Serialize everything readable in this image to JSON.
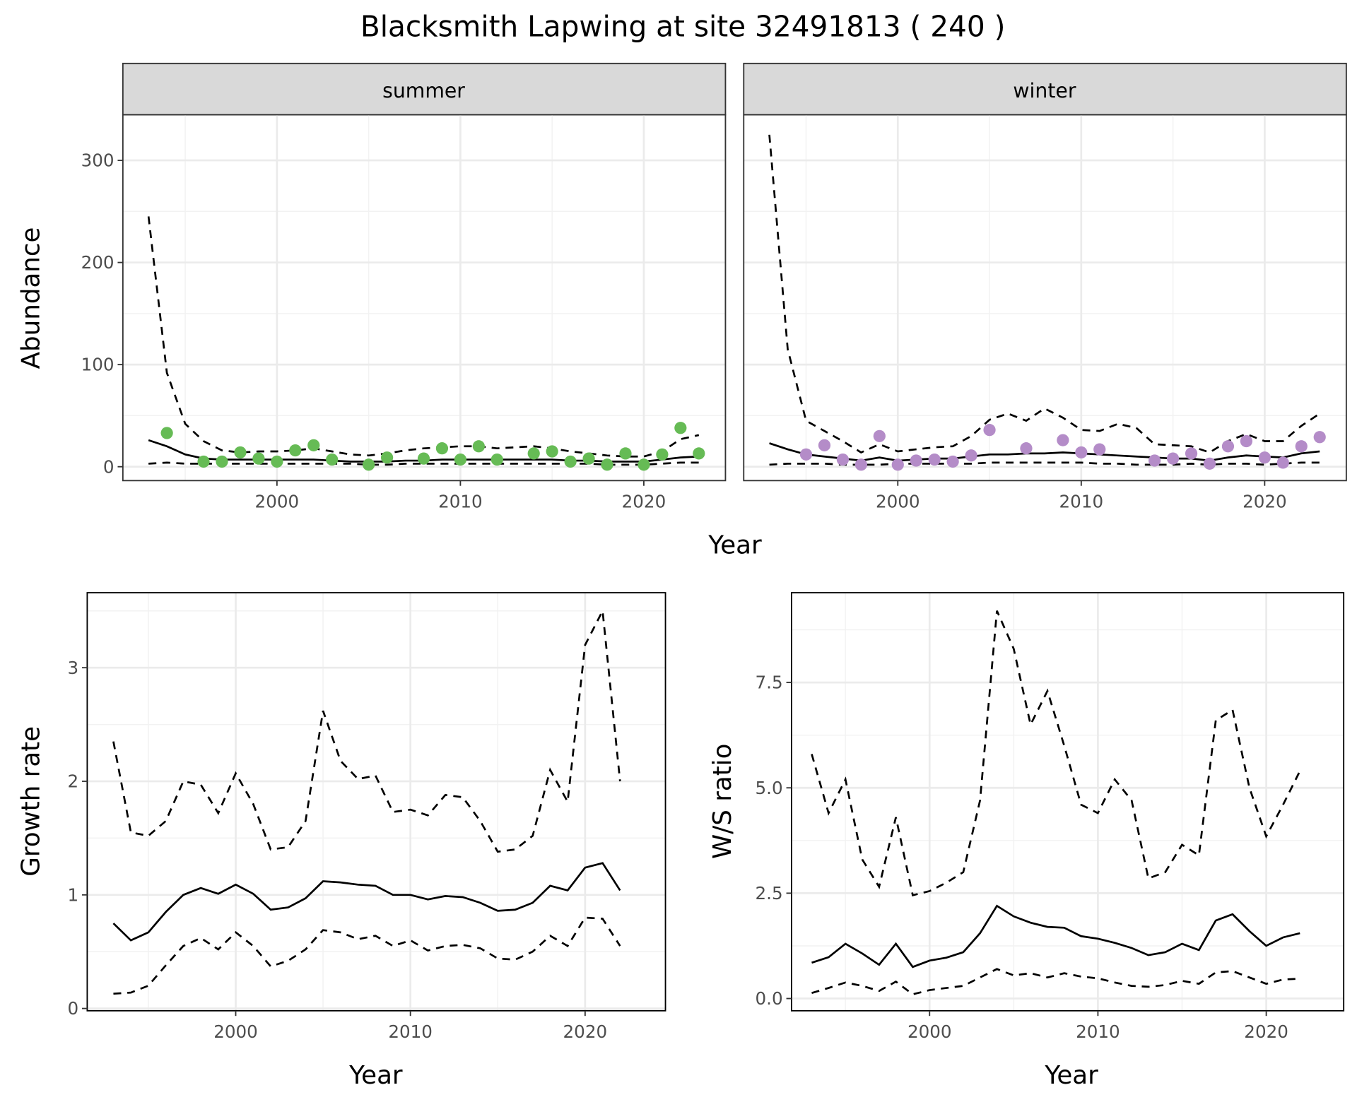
{
  "title": "Blacksmith Lapwing at site 32491813 ( 240 )",
  "colors": {
    "summer": "#66bb55",
    "winter": "#b48cc8",
    "line": "#000000"
  },
  "chart_data": [
    {
      "type": "line+scatter",
      "facet": "summer",
      "xlabel": "Year",
      "ylabel": "Abundance",
      "xlim": [
        1991.6,
        2024.45
      ],
      "ylim": [
        -13.6,
        344.7
      ],
      "xticks": [
        2000,
        2010,
        2020
      ],
      "yticks": [
        0,
        100,
        200,
        300
      ],
      "points": {
        "x": [
          1994,
          1996,
          1997,
          1998,
          1999,
          2000,
          2001,
          2002,
          2003,
          2005,
          2006,
          2008,
          2009,
          2010,
          2011,
          2012,
          2014,
          2015,
          2016,
          2017,
          2018,
          2019,
          2020,
          2021,
          2022,
          2023
        ],
        "y": [
          33,
          5,
          5,
          14,
          8,
          5,
          16,
          21,
          7,
          2,
          9,
          8,
          18,
          7,
          20,
          7,
          13,
          15,
          5,
          8,
          2,
          13,
          2,
          12,
          38,
          13
        ]
      },
      "years": [
        1993,
        1994,
        1995,
        1996,
        1997,
        1998,
        1999,
        2000,
        2001,
        2002,
        2003,
        2004,
        2005,
        2006,
        2007,
        2008,
        2009,
        2010,
        2011,
        2012,
        2013,
        2014,
        2015,
        2016,
        2017,
        2018,
        2019,
        2020,
        2021,
        2022,
        2023
      ],
      "mean": [
        26,
        20,
        12,
        8,
        7,
        7,
        7,
        7,
        7,
        7,
        6,
        5,
        5,
        5,
        6,
        6,
        7,
        7,
        7,
        7,
        7,
        7,
        7,
        6,
        6,
        5,
        5,
        5,
        7,
        9,
        10
      ],
      "upper": [
        245,
        92,
        42,
        25,
        16,
        14,
        15,
        15,
        16,
        18,
        15,
        12,
        11,
        13,
        16,
        18,
        19,
        20,
        20,
        18,
        19,
        20,
        18,
        15,
        13,
        11,
        10,
        10,
        15,
        27,
        31
      ],
      "lower": [
        3,
        4,
        3,
        3,
        3,
        3,
        3,
        3,
        3,
        3,
        3,
        3,
        2,
        2,
        3,
        3,
        3,
        3,
        3,
        3,
        3,
        3,
        3,
        3,
        3,
        2,
        2,
        2,
        3,
        4,
        4
      ]
    },
    {
      "type": "line+scatter",
      "facet": "winter",
      "xlabel": "Year",
      "ylabel": "Abundance",
      "xlim": [
        1991.6,
        2024.45
      ],
      "ylim": [
        -13.6,
        344.7
      ],
      "xticks": [
        2000,
        2010,
        2020
      ],
      "yticks": [
        0,
        100,
        200,
        300
      ],
      "points": {
        "x": [
          1995,
          1996,
          1997,
          1998,
          1999,
          2000,
          2001,
          2002,
          2003,
          2004,
          2005,
          2007,
          2009,
          2010,
          2011,
          2014,
          2015,
          2016,
          2017,
          2018,
          2019,
          2020,
          2021,
          2022,
          2023
        ],
        "y": [
          12,
          21,
          7,
          2,
          30,
          2,
          6,
          7,
          5,
          11,
          36,
          18,
          26,
          14,
          17,
          6,
          8,
          13,
          3,
          20,
          25,
          9,
          4,
          20,
          29
        ]
      },
      "years": [
        1993,
        1994,
        1995,
        1996,
        1997,
        1998,
        1999,
        2000,
        2001,
        2002,
        2003,
        2004,
        2005,
        2006,
        2007,
        2008,
        2009,
        2010,
        2011,
        2012,
        2013,
        2014,
        2015,
        2016,
        2017,
        2018,
        2019,
        2020,
        2021,
        2022,
        2023
      ],
      "mean": [
        23,
        17,
        12,
        10,
        8,
        6,
        9,
        6,
        7,
        8,
        8,
        10,
        12,
        12,
        13,
        13,
        14,
        13,
        12,
        11,
        10,
        9,
        8,
        8,
        6,
        9,
        11,
        10,
        9,
        13,
        15
      ],
      "upper": [
        325,
        115,
        45,
        35,
        25,
        14,
        22,
        15,
        17,
        19,
        20,
        30,
        46,
        52,
        45,
        57,
        48,
        36,
        35,
        42,
        38,
        22,
        21,
        20,
        14,
        25,
        32,
        25,
        25,
        40,
        52
      ],
      "lower": [
        2,
        3,
        3,
        3,
        2,
        2,
        2,
        3,
        3,
        3,
        3,
        3,
        4,
        4,
        4,
        4,
        4,
        4,
        3,
        3,
        2,
        2,
        2,
        3,
        2,
        3,
        3,
        2,
        3,
        4,
        4
      ]
    },
    {
      "type": "line",
      "xlabel": "Year",
      "ylabel": "Growth rate",
      "xlim": [
        1991.5,
        2024.6
      ],
      "ylim": [
        -0.02,
        3.66
      ],
      "xticks": [
        2000,
        2010,
        2020
      ],
      "yticks": [
        0,
        1,
        2,
        3
      ],
      "years": [
        1993,
        1994,
        1995,
        1996,
        1997,
        1998,
        1999,
        2000,
        2001,
        2002,
        2003,
        2004,
        2005,
        2006,
        2007,
        2008,
        2009,
        2010,
        2011,
        2012,
        2013,
        2014,
        2015,
        2016,
        2017,
        2018,
        2019,
        2020,
        2021,
        2022
      ],
      "mean": [
        0.75,
        0.6,
        0.67,
        0.85,
        1.0,
        1.06,
        1.01,
        1.09,
        1.01,
        0.87,
        0.89,
        0.97,
        1.12,
        1.11,
        1.09,
        1.08,
        1.0,
        1.0,
        0.96,
        0.99,
        0.98,
        0.93,
        0.86,
        0.87,
        0.93,
        1.08,
        1.04,
        1.24,
        1.28,
        1.04
      ],
      "upper": [
        2.35,
        1.55,
        1.52,
        1.65,
        2.0,
        1.97,
        1.72,
        2.07,
        1.8,
        1.4,
        1.42,
        1.65,
        2.62,
        2.18,
        2.02,
        2.05,
        1.73,
        1.75,
        1.7,
        1.88,
        1.86,
        1.65,
        1.38,
        1.4,
        1.52,
        2.1,
        1.82,
        3.2,
        3.5,
        2.0
      ],
      "lower": [
        0.13,
        0.14,
        0.2,
        0.38,
        0.55,
        0.62,
        0.52,
        0.67,
        0.55,
        0.37,
        0.42,
        0.52,
        0.69,
        0.67,
        0.61,
        0.64,
        0.55,
        0.6,
        0.51,
        0.55,
        0.56,
        0.53,
        0.44,
        0.43,
        0.5,
        0.64,
        0.55,
        0.8,
        0.79,
        0.55
      ]
    },
    {
      "type": "line",
      "xlabel": "Year",
      "ylabel": "W/S ratio",
      "xlim": [
        1991.8,
        2024.6
      ],
      "ylim": [
        -0.29,
        9.63
      ],
      "xticks": [
        2000,
        2010,
        2020
      ],
      "yticks": [
        0.0,
        2.5,
        5.0,
        7.5
      ],
      "ytick_labels": [
        "0.0",
        "2.5",
        "5.0",
        "7.5"
      ],
      "years": [
        1993,
        1994,
        1995,
        1996,
        1997,
        1998,
        1999,
        2000,
        2001,
        2002,
        2003,
        2004,
        2005,
        2006,
        2007,
        2008,
        2009,
        2010,
        2011,
        2012,
        2013,
        2014,
        2015,
        2016,
        2017,
        2018,
        2019,
        2020,
        2021,
        2022
      ],
      "mean": [
        0.85,
        0.98,
        1.3,
        1.07,
        0.8,
        1.3,
        0.75,
        0.9,
        0.97,
        1.1,
        1.55,
        2.2,
        1.95,
        1.8,
        1.7,
        1.68,
        1.48,
        1.42,
        1.32,
        1.2,
        1.03,
        1.1,
        1.3,
        1.15,
        1.85,
        2.0,
        1.6,
        1.25,
        1.45,
        1.55
      ],
      "upper": [
        5.8,
        4.4,
        5.2,
        3.3,
        2.65,
        4.3,
        2.45,
        2.55,
        2.75,
        3.0,
        4.7,
        9.2,
        8.3,
        6.5,
        7.3,
        6.0,
        4.6,
        4.4,
        5.2,
        4.7,
        2.85,
        3.0,
        3.65,
        3.4,
        6.6,
        6.85,
        5.0,
        3.85,
        4.6,
        5.4
      ],
      "lower": [
        0.13,
        0.25,
        0.38,
        0.3,
        0.18,
        0.4,
        0.1,
        0.2,
        0.25,
        0.3,
        0.5,
        0.7,
        0.55,
        0.6,
        0.5,
        0.6,
        0.52,
        0.48,
        0.38,
        0.3,
        0.28,
        0.32,
        0.42,
        0.35,
        0.62,
        0.65,
        0.5,
        0.35,
        0.45,
        0.47
      ]
    }
  ]
}
